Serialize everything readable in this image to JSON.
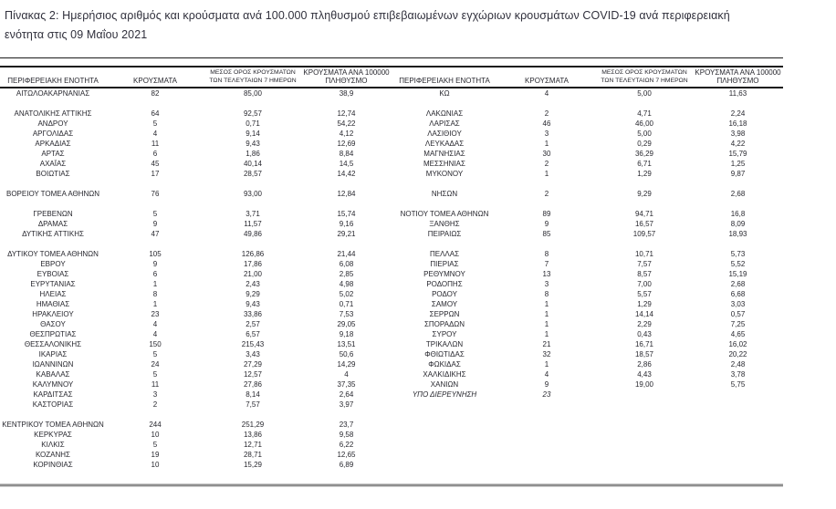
{
  "title": {
    "line1": "Πίνακας 2:  Ημερήσιος αριθμός και κρούσματα ανά 100.000 πληθυσμού επιβεβαιωμένων εγχώριων κρουσμάτων COVID-19 ανά περιφερειακή",
    "line2": "ενότητα στις 09 Μαΐου 2021"
  },
  "table": {
    "headers": [
      {
        "key": "region",
        "size": "md",
        "lines": [
          "ΠΕΡΙΦΕΡΕΙΑΚΗ ΕΝΟΤΗΤΑ"
        ]
      },
      {
        "key": "cases",
        "size": "md",
        "lines": [
          "ΚΡΟΥΣΜΑΤΑ"
        ]
      },
      {
        "key": "avg7",
        "size": "sm",
        "lines": [
          "ΜΕΣΟΣ ΟΡΟΣ ΚΡΟΥΣΜΑΤΩΝ",
          "ΤΩΝ ΤΕΛΕΥΤΑΙΩΝ 7 ΗΜΕΡΩΝ"
        ]
      },
      {
        "key": "per100k",
        "size": "md",
        "lines": [
          "ΚΡΟΥΣΜΑΤΑ ΑΝΑ 100000",
          "ΠΛΗΘΥΣΜΟ"
        ]
      }
    ],
    "italic_row_name": "ΥΠΟ ΔΙΕΡΕΥΝΗΣΗ",
    "left_rows": [
      [
        "ΑΙΤΩΛΟΑΚΑΡΝΑΝΙΑΣ",
        "82",
        "85,00",
        "38,9"
      ],
      [
        "",
        "",
        "",
        ""
      ],
      [
        "ΑΝΑΤΟΛΙΚΗΣ ΑΤΤΙΚΗΣ",
        "64",
        "92,57",
        "12,74"
      ],
      [
        "ΑΝΔΡΟΥ",
        "5",
        "0,71",
        "54,22"
      ],
      [
        "ΑΡΓΟΛΙΔΑΣ",
        "4",
        "9,14",
        "4,12"
      ],
      [
        "ΑΡΚΑΔΙΑΣ",
        "11",
        "9,43",
        "12,69"
      ],
      [
        "ΑΡΤΑΣ",
        "6",
        "1,86",
        "8,84"
      ],
      [
        "ΑΧΑΪΑΣ",
        "45",
        "40,14",
        "14,5"
      ],
      [
        "ΒΟΙΩΤΙΑΣ",
        "17",
        "28,57",
        "14,42"
      ],
      [
        "",
        "",
        "",
        ""
      ],
      [
        "ΒΟΡΕΙΟΥ ΤΟΜΕΑ ΑΘΗΝΩΝ",
        "76",
        "93,00",
        "12,84"
      ],
      [
        "",
        "",
        "",
        ""
      ],
      [
        "ΓΡΕΒΕΝΩΝ",
        "5",
        "3,71",
        "15,74"
      ],
      [
        "ΔΡΑΜΑΣ",
        "9",
        "11,57",
        "9,16"
      ],
      [
        "ΔΥΤΙΚΗΣ ΑΤΤΙΚΗΣ",
        "47",
        "49,86",
        "29,21"
      ],
      [
        "",
        "",
        "",
        ""
      ],
      [
        "ΔΥΤΙΚΟΥ ΤΟΜΕΑ ΑΘΗΝΩΝ",
        "105",
        "126,86",
        "21,44"
      ],
      [
        "ΕΒΡΟΥ",
        "9",
        "17,86",
        "6,08"
      ],
      [
        "ΕΥΒΟΙΑΣ",
        "6",
        "21,00",
        "2,85"
      ],
      [
        "ΕΥΡΥΤΑΝΙΑΣ",
        "1",
        "2,43",
        "4,98"
      ],
      [
        "ΗΛΕΙΑΣ",
        "8",
        "9,29",
        "5,02"
      ],
      [
        "ΗΜΑΘΙΑΣ",
        "1",
        "9,43",
        "0,71"
      ],
      [
        "ΗΡΑΚΛΕΙΟΥ",
        "23",
        "33,86",
        "7,53"
      ],
      [
        "ΘΑΣΟΥ",
        "4",
        "2,57",
        "29,05"
      ],
      [
        "ΘΕΣΠΡΩΤΙΑΣ",
        "4",
        "6,57",
        "9,18"
      ],
      [
        "ΘΕΣΣΑΛΟΝΙΚΗΣ",
        "150",
        "215,43",
        "13,51"
      ],
      [
        "ΙΚΑΡΙΑΣ",
        "5",
        "3,43",
        "50,6"
      ],
      [
        "ΙΩΑΝΝΙΝΩΝ",
        "24",
        "27,29",
        "14,29"
      ],
      [
        "ΚΑΒΑΛΑΣ",
        "5",
        "12,57",
        "4"
      ],
      [
        "ΚΑΛΥΜΝΟΥ",
        "11",
        "27,86",
        "37,35"
      ],
      [
        "ΚΑΡΔΙΤΣΑΣ",
        "3",
        "8,14",
        "2,64"
      ],
      [
        "ΚΑΣΤΟΡΙΑΣ",
        "2",
        "7,57",
        "3,97"
      ],
      [
        "",
        "",
        "",
        ""
      ],
      [
        "ΚΕΝΤΡΙΚΟΥ ΤΟΜΕΑ ΑΘΗΝΩΝ",
        "244",
        "251,29",
        "23,7"
      ],
      [
        "ΚΕΡΚΥΡΑΣ",
        "10",
        "13,86",
        "9,58"
      ],
      [
        "ΚΙΛΚΙΣ",
        "5",
        "12,71",
        "6,22"
      ],
      [
        "ΚΟΖΑΝΗΣ",
        "19",
        "28,71",
        "12,65"
      ],
      [
        "ΚΟΡΙΝΘΙΑΣ",
        "10",
        "15,29",
        "6,89"
      ]
    ],
    "right_rows": [
      [
        "ΚΩ",
        "4",
        "5,00",
        "11,63"
      ],
      [
        "",
        "",
        "",
        ""
      ],
      [
        "ΛΑΚΩΝΙΑΣ",
        "2",
        "4,71",
        "2,24"
      ],
      [
        "ΛΑΡΙΣΑΣ",
        "46",
        "46,00",
        "16,18"
      ],
      [
        "ΛΑΣΙΘΙΟΥ",
        "3",
        "5,00",
        "3,98"
      ],
      [
        "ΛΕΥΚΑΔΑΣ",
        "1",
        "0,29",
        "4,22"
      ],
      [
        "ΜΑΓΝΗΣΙΑΣ",
        "30",
        "36,29",
        "15,79"
      ],
      [
        "ΜΕΣΣΗΝΙΑΣ",
        "2",
        "6,71",
        "1,25"
      ],
      [
        "ΜΥΚΟΝΟΥ",
        "1",
        "1,29",
        "9,87"
      ],
      [
        "",
        "",
        "",
        ""
      ],
      [
        "ΝΗΣΩΝ",
        "2",
        "9,29",
        "2,68"
      ],
      [
        "",
        "",
        "",
        ""
      ],
      [
        "ΝΟΤΙΟΥ ΤΟΜΕΑ ΑΘΗΝΩΝ",
        "89",
        "94,71",
        "16,8"
      ],
      [
        "ΞΑΝΘΗΣ",
        "9",
        "16,57",
        "8,09"
      ],
      [
        "ΠΕΙΡΑΙΩΣ",
        "85",
        "109,57",
        "18,93"
      ],
      [
        "",
        "",
        "",
        ""
      ],
      [
        "ΠΕΛΛΑΣ",
        "8",
        "10,71",
        "5,73"
      ],
      [
        "ΠΙΕΡΙΑΣ",
        "7",
        "7,57",
        "5,52"
      ],
      [
        "ΡΕΘΥΜΝΟΥ",
        "13",
        "8,57",
        "15,19"
      ],
      [
        "ΡΟΔΟΠΗΣ",
        "3",
        "7,00",
        "2,68"
      ],
      [
        "ΡΟΔΟΥ",
        "8",
        "5,57",
        "6,68"
      ],
      [
        "ΣΑΜΟΥ",
        "1",
        "1,29",
        "3,03"
      ],
      [
        "ΣΕΡΡΩΝ",
        "1",
        "14,14",
        "0,57"
      ],
      [
        "ΣΠΟΡΑΔΩΝ",
        "1",
        "2,29",
        "7,25"
      ],
      [
        "ΣΥΡΟΥ",
        "1",
        "0,43",
        "4,65"
      ],
      [
        "ΤΡΙΚΑΛΩΝ",
        "21",
        "16,71",
        "16,02"
      ],
      [
        "ΦΘΙΩΤΙΔΑΣ",
        "32",
        "18,57",
        "20,22"
      ],
      [
        "ΦΩΚΙΔΑΣ",
        "1",
        "2,86",
        "2,48"
      ],
      [
        "ΧΑΛΚΙΔΙΚΗΣ",
        "4",
        "4,43",
        "3,78"
      ],
      [
        "ΧΑΝΙΩΝ",
        "9",
        "19,00",
        "5,75"
      ],
      [
        "ΥΠΟ ΔΙΕΡΕΥΝΗΣΗ",
        "23",
        "",
        ""
      ],
      [
        "",
        "",
        "",
        ""
      ],
      [
        "",
        "",
        "",
        ""
      ],
      [
        "",
        "",
        "",
        ""
      ],
      [
        "",
        "",
        "",
        ""
      ],
      [
        "",
        "",
        "",
        ""
      ],
      [
        "",
        "",
        "",
        ""
      ],
      [
        "",
        "",
        "",
        ""
      ]
    ]
  },
  "colors": {
    "text": "#28282f",
    "rule_black": "#1c1c1c",
    "rule_gray": "#8f8f8f"
  }
}
